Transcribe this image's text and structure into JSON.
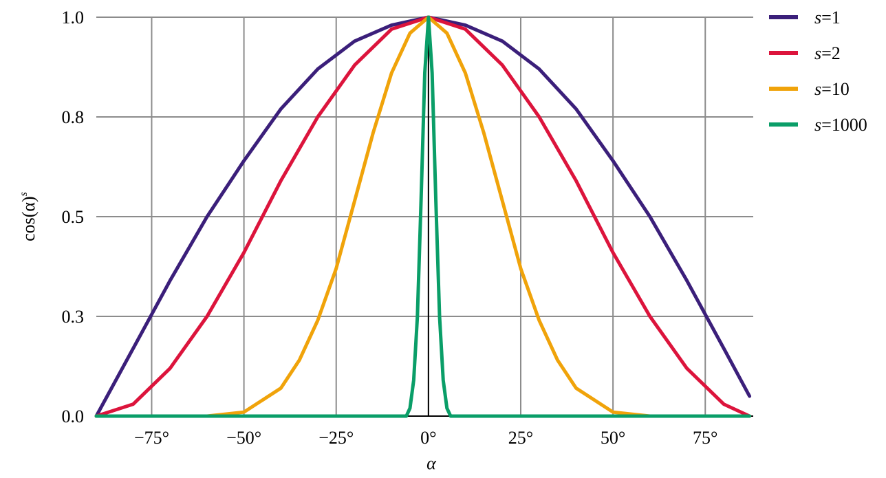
{
  "chart_data": {
    "type": "line",
    "title": "",
    "xlabel": "α",
    "ylabel": "cos(α)",
    "ylabel_superscript": "s",
    "xlim": [
      -90,
      88
    ],
    "ylim": [
      0,
      1
    ],
    "grid": true,
    "legend_position": "right",
    "x_ticks": [
      {
        "value": -75,
        "label": "−75°"
      },
      {
        "value": -50,
        "label": "−50°"
      },
      {
        "value": -25,
        "label": "−25°"
      },
      {
        "value": 0,
        "label": "0°"
      },
      {
        "value": 25,
        "label": "25°"
      },
      {
        "value": 50,
        "label": "50°"
      },
      {
        "value": 75,
        "label": "75°"
      }
    ],
    "y_ticks": [
      {
        "value": 0,
        "label": "0.0"
      },
      {
        "value": 0.25,
        "label": "0.3"
      },
      {
        "value": 0.5,
        "label": "0.5"
      },
      {
        "value": 0.75,
        "label": "0.8"
      },
      {
        "value": 1,
        "label": "1.0"
      }
    ],
    "series": [
      {
        "name_var": "s",
        "name_suffix": "=1",
        "color": "#3b1f7a",
        "x": [
          -90,
          -80,
          -70,
          -60,
          -50,
          -40,
          -30,
          -20,
          -10,
          0,
          10,
          20,
          30,
          40,
          50,
          60,
          70,
          80,
          87
        ],
        "y": [
          0,
          0.17,
          0.34,
          0.5,
          0.64,
          0.77,
          0.87,
          0.94,
          0.98,
          1,
          0.98,
          0.94,
          0.87,
          0.77,
          0.64,
          0.5,
          0.34,
          0.17,
          0.05
        ]
      },
      {
        "name_var": "s",
        "name_suffix": "=2",
        "color": "#dc143c",
        "x": [
          -90,
          -80,
          -70,
          -60,
          -50,
          -40,
          -30,
          -20,
          -10,
          0,
          10,
          20,
          30,
          40,
          50,
          60,
          70,
          80,
          87
        ],
        "y": [
          0,
          0.03,
          0.12,
          0.25,
          0.41,
          0.59,
          0.75,
          0.88,
          0.97,
          1,
          0.97,
          0.88,
          0.75,
          0.59,
          0.41,
          0.25,
          0.12,
          0.03,
          0
        ]
      },
      {
        "name_var": "s",
        "name_suffix": "=10",
        "color": "#f0a30a",
        "x": [
          -90,
          -60,
          -50,
          -40,
          -35,
          -30,
          -25,
          -20,
          -15,
          -10,
          -5,
          0,
          5,
          10,
          15,
          20,
          25,
          30,
          35,
          40,
          50,
          60,
          87
        ],
        "y": [
          0,
          0,
          0.01,
          0.07,
          0.14,
          0.24,
          0.37,
          0.54,
          0.71,
          0.86,
          0.96,
          1,
          0.96,
          0.86,
          0.71,
          0.54,
          0.37,
          0.24,
          0.14,
          0.07,
          0.01,
          0,
          0
        ]
      },
      {
        "name_var": "s",
        "name_suffix": "=1000",
        "color": "#0a9e68",
        "x": [
          -90,
          -6,
          -5,
          -4,
          -3,
          -2,
          -1,
          0,
          1,
          2,
          3,
          4,
          5,
          6,
          87
        ],
        "y": [
          0,
          0,
          0.02,
          0.09,
          0.25,
          0.54,
          0.86,
          1,
          0.86,
          0.54,
          0.25,
          0.09,
          0.02,
          0,
          0
        ]
      }
    ]
  }
}
